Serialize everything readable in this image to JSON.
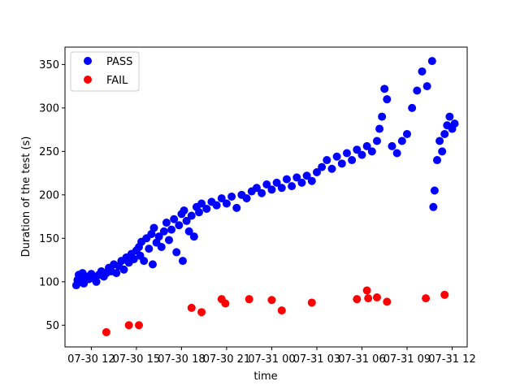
{
  "chart_data": {
    "type": "scatter",
    "xlabel": "time",
    "ylabel": "Duration of the test (s)",
    "x_ticks": [
      "07-30 12",
      "07-30 15",
      "07-30 18",
      "07-30 21",
      "07-31 00",
      "07-31 03",
      "07-31 06",
      "07-31 09",
      "07-31 12"
    ],
    "y_ticks": [
      50,
      100,
      150,
      200,
      250,
      300,
      350
    ],
    "xlim": [
      "07-30 10:15",
      "07-31 13:00"
    ],
    "ylim": [
      25,
      370
    ],
    "grid": false,
    "legend_position": "top-left",
    "series": [
      {
        "name": "PASS",
        "color": "#0000ff",
        "points": [
          [
            "07-30 11:00",
            96
          ],
          [
            "07-30 11:05",
            102
          ],
          [
            "07-30 11:10",
            108
          ],
          [
            "07-30 11:15",
            100
          ],
          [
            "07-30 11:20",
            104
          ],
          [
            "07-30 11:25",
            110
          ],
          [
            "07-30 11:30",
            98
          ],
          [
            "07-30 11:40",
            106
          ],
          [
            "07-30 11:50",
            103
          ],
          [
            "07-30 12:00",
            109
          ],
          [
            "07-30 12:10",
            104
          ],
          [
            "07-30 12:20",
            100
          ],
          [
            "07-30 12:30",
            108
          ],
          [
            "07-30 12:40",
            112
          ],
          [
            "07-30 12:50",
            106
          ],
          [
            "07-30 13:00",
            110
          ],
          [
            "07-30 13:10",
            116
          ],
          [
            "07-30 13:20",
            112
          ],
          [
            "07-30 13:30",
            120
          ],
          [
            "07-30 13:40",
            110
          ],
          [
            "07-30 13:50",
            118
          ],
          [
            "07-30 14:00",
            124
          ],
          [
            "07-30 14:10",
            114
          ],
          [
            "07-30 14:20",
            128
          ],
          [
            "07-30 14:30",
            122
          ],
          [
            "07-30 14:40",
            132
          ],
          [
            "07-30 14:50",
            126
          ],
          [
            "07-30 15:00",
            136
          ],
          [
            "07-30 15:10",
            140
          ],
          [
            "07-30 15:15",
            130
          ],
          [
            "07-30 15:20",
            146
          ],
          [
            "07-30 15:30",
            124
          ],
          [
            "07-30 15:40",
            150
          ],
          [
            "07-30 15:50",
            138
          ],
          [
            "07-30 16:00",
            155
          ],
          [
            "07-30 16:05",
            120
          ],
          [
            "07-30 16:10",
            162
          ],
          [
            "07-30 16:20",
            145
          ],
          [
            "07-30 16:30",
            152
          ],
          [
            "07-30 16:40",
            140
          ],
          [
            "07-30 16:50",
            158
          ],
          [
            "07-30 17:00",
            168
          ],
          [
            "07-30 17:10",
            148
          ],
          [
            "07-30 17:20",
            160
          ],
          [
            "07-30 17:30",
            172
          ],
          [
            "07-30 17:40",
            134
          ],
          [
            "07-30 17:50",
            165
          ],
          [
            "07-30 18:00",
            178
          ],
          [
            "07-30 18:05",
            124
          ],
          [
            "07-30 18:10",
            182
          ],
          [
            "07-30 18:20",
            170
          ],
          [
            "07-30 18:30",
            158
          ],
          [
            "07-30 18:40",
            176
          ],
          [
            "07-30 18:50",
            152
          ],
          [
            "07-30 19:00",
            186
          ],
          [
            "07-30 19:10",
            180
          ],
          [
            "07-30 19:20",
            190
          ],
          [
            "07-30 19:40",
            184
          ],
          [
            "07-30 20:00",
            192
          ],
          [
            "07-30 20:20",
            188
          ],
          [
            "07-30 20:40",
            196
          ],
          [
            "07-30 21:00",
            190
          ],
          [
            "07-30 21:20",
            198
          ],
          [
            "07-30 21:40",
            185
          ],
          [
            "07-30 22:00",
            200
          ],
          [
            "07-30 22:20",
            196
          ],
          [
            "07-30 22:40",
            204
          ],
          [
            "07-30 23:00",
            208
          ],
          [
            "07-30 23:20",
            202
          ],
          [
            "07-30 23:40",
            212
          ],
          [
            "07-31 00:00",
            206
          ],
          [
            "07-31 00:20",
            214
          ],
          [
            "07-31 00:40",
            208
          ],
          [
            "07-31 01:00",
            218
          ],
          [
            "07-31 01:20",
            210
          ],
          [
            "07-31 01:40",
            220
          ],
          [
            "07-31 02:00",
            214
          ],
          [
            "07-31 02:20",
            222
          ],
          [
            "07-31 02:40",
            216
          ],
          [
            "07-31 03:00",
            226
          ],
          [
            "07-31 03:20",
            232
          ],
          [
            "07-31 03:40",
            240
          ],
          [
            "07-31 04:00",
            230
          ],
          [
            "07-31 04:20",
            244
          ],
          [
            "07-31 04:40",
            236
          ],
          [
            "07-31 05:00",
            248
          ],
          [
            "07-31 05:20",
            240
          ],
          [
            "07-31 05:40",
            252
          ],
          [
            "07-31 06:00",
            246
          ],
          [
            "07-31 06:20",
            256
          ],
          [
            "07-31 06:40",
            250
          ],
          [
            "07-31 07:00",
            262
          ],
          [
            "07-31 07:10",
            276
          ],
          [
            "07-31 07:20",
            290
          ],
          [
            "07-31 07:30",
            322
          ],
          [
            "07-31 07:40",
            310
          ],
          [
            "07-31 08:00",
            256
          ],
          [
            "07-31 08:20",
            248
          ],
          [
            "07-31 08:40",
            262
          ],
          [
            "07-31 09:00",
            270
          ],
          [
            "07-31 09:20",
            300
          ],
          [
            "07-31 09:40",
            320
          ],
          [
            "07-31 10:00",
            342
          ],
          [
            "07-31 10:20",
            325
          ],
          [
            "07-31 10:40",
            354
          ],
          [
            "07-31 10:45",
            186
          ],
          [
            "07-31 10:50",
            205
          ],
          [
            "07-31 11:00",
            240
          ],
          [
            "07-31 11:10",
            262
          ],
          [
            "07-31 11:20",
            250
          ],
          [
            "07-31 11:30",
            270
          ],
          [
            "07-31 11:40",
            280
          ],
          [
            "07-31 11:50",
            290
          ],
          [
            "07-31 12:00",
            276
          ],
          [
            "07-31 12:10",
            282
          ]
        ]
      },
      {
        "name": "FAIL",
        "color": "#ff0000",
        "points": [
          [
            "07-30 13:00",
            42
          ],
          [
            "07-30 14:30",
            50
          ],
          [
            "07-30 15:10",
            50
          ],
          [
            "07-30 18:40",
            70
          ],
          [
            "07-30 19:20",
            65
          ],
          [
            "07-30 20:40",
            80
          ],
          [
            "07-30 20:55",
            75
          ],
          [
            "07-30 22:30",
            80
          ],
          [
            "07-31 00:00",
            79
          ],
          [
            "07-31 00:40",
            67
          ],
          [
            "07-31 02:40",
            76
          ],
          [
            "07-31 05:40",
            80
          ],
          [
            "07-31 06:20",
            90
          ],
          [
            "07-31 06:25",
            81
          ],
          [
            "07-31 07:00",
            82
          ],
          [
            "07-31 07:40",
            77
          ],
          [
            "07-31 10:15",
            81
          ],
          [
            "07-31 11:30",
            85
          ]
        ]
      }
    ]
  }
}
